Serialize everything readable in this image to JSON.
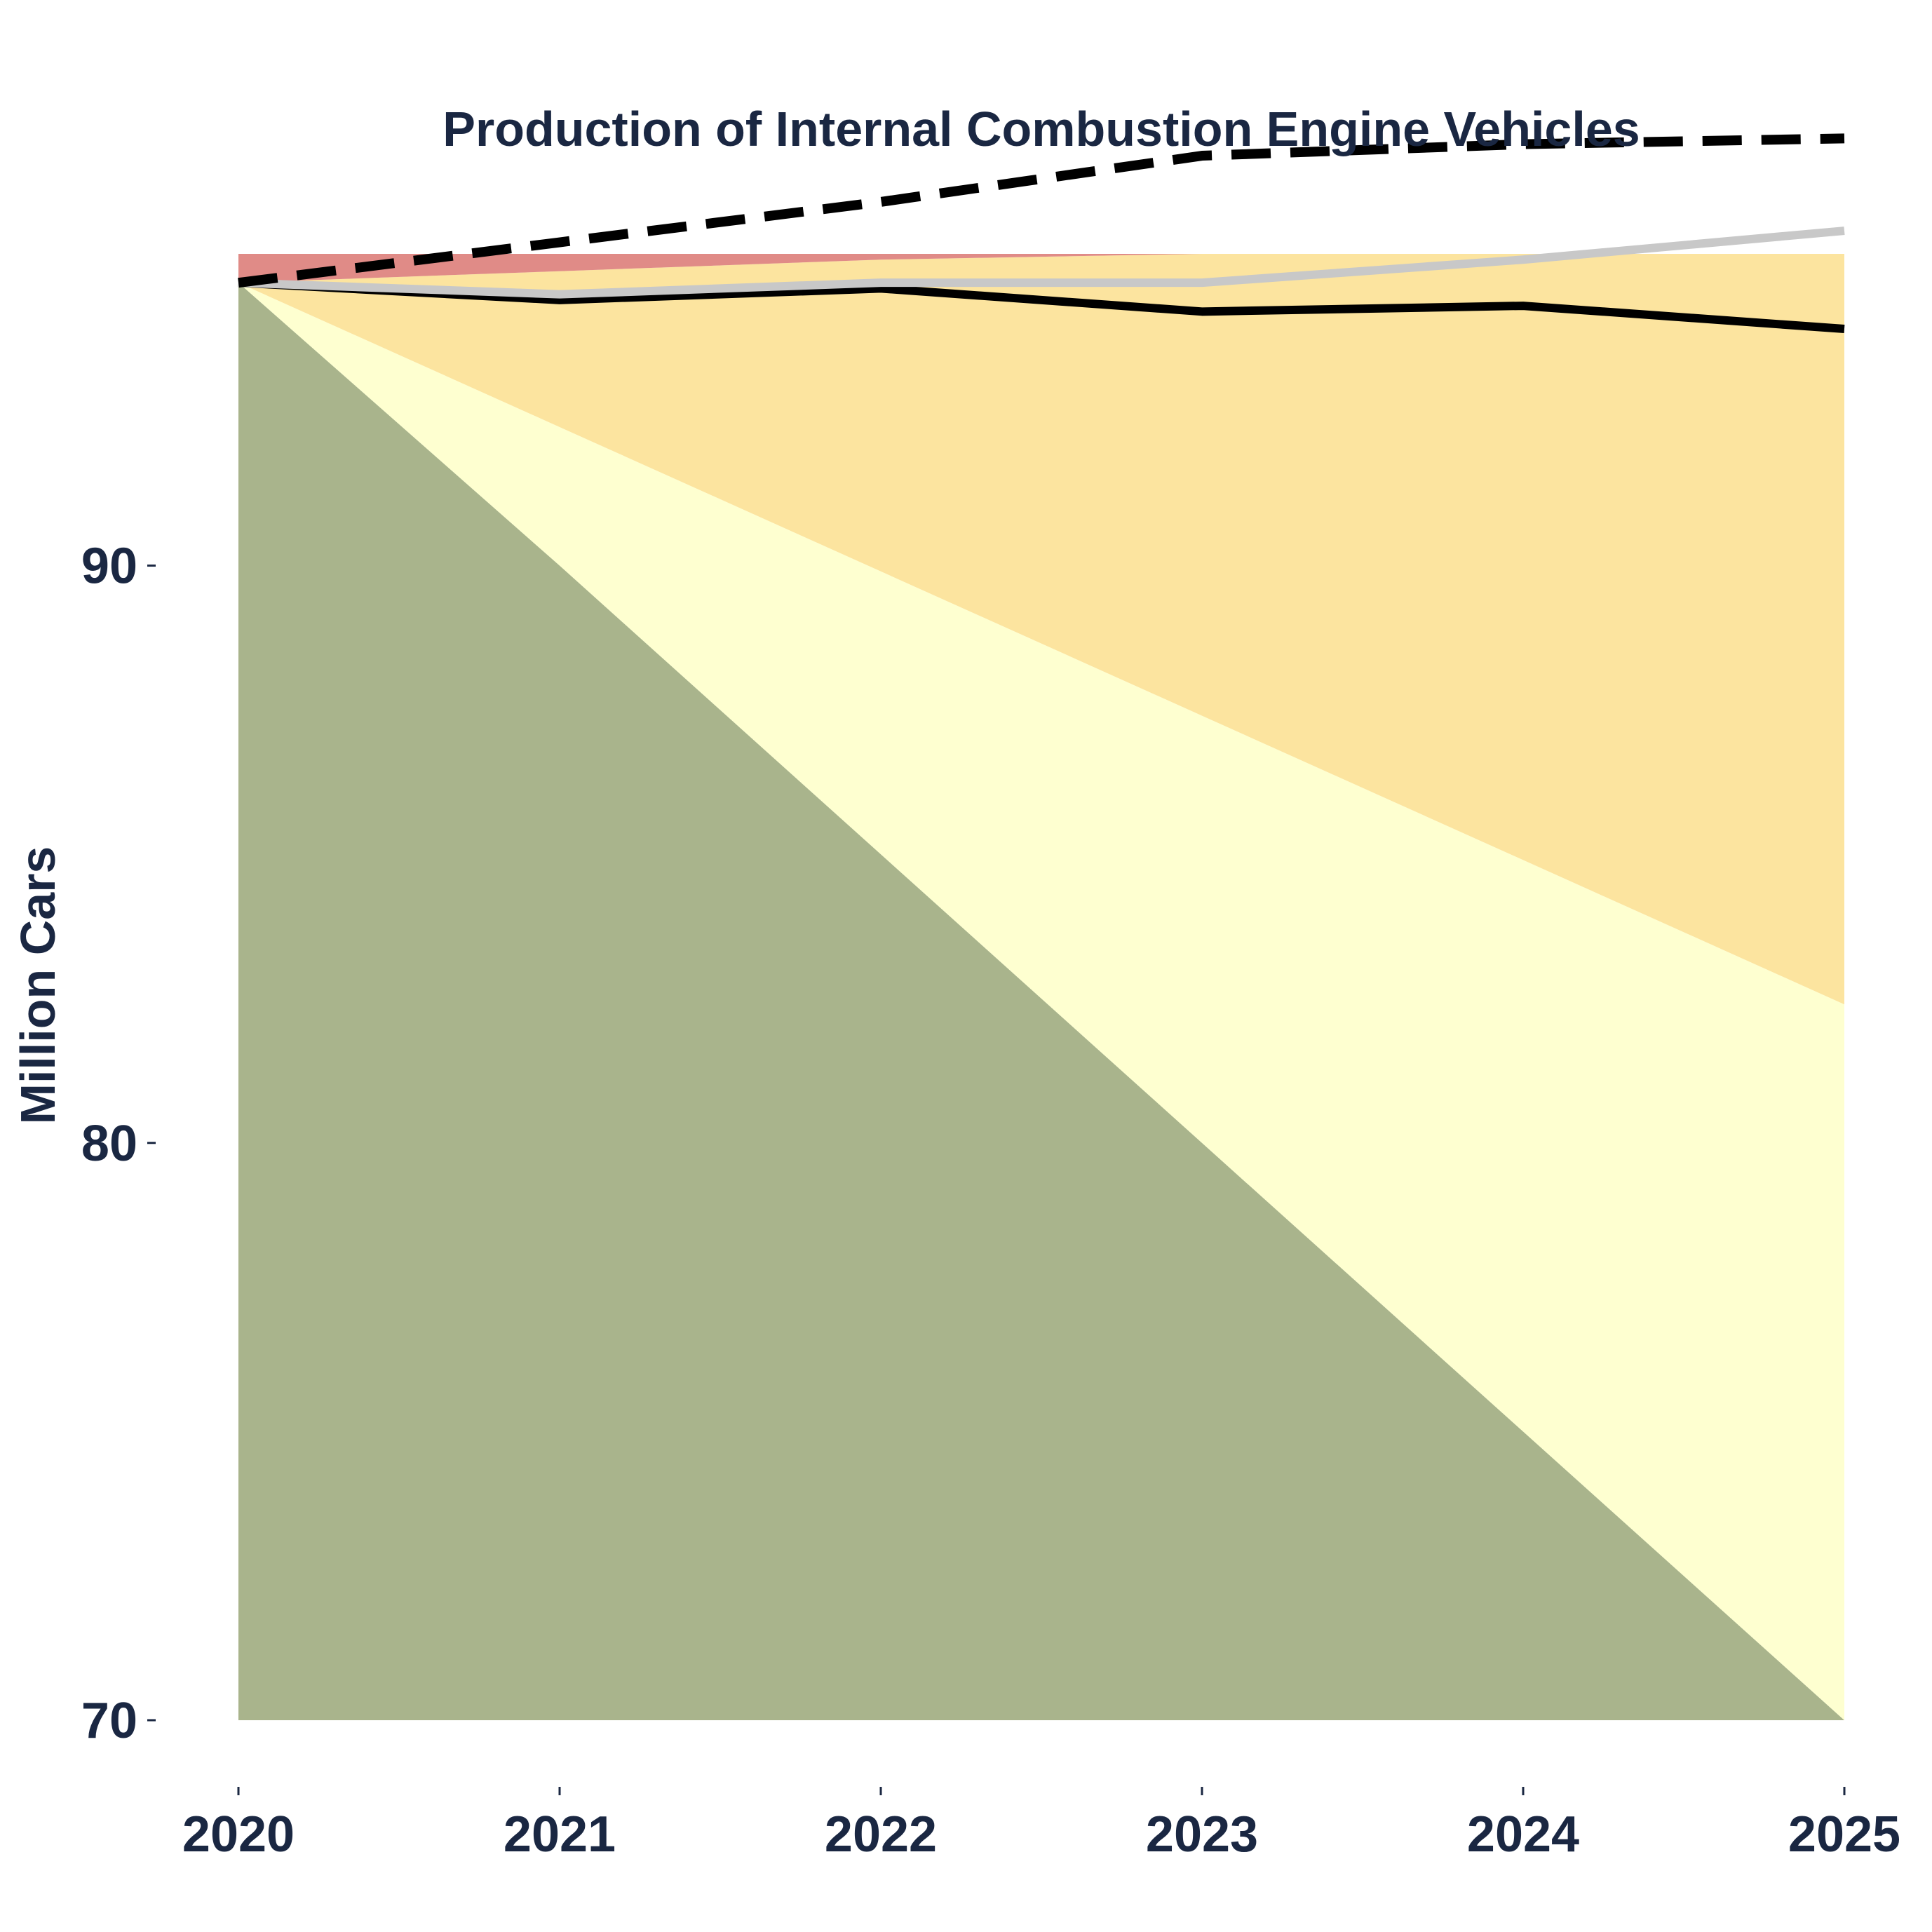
{
  "chart_data": {
    "type": "area",
    "title": "Production of Internal Combustion Engine Vehicles",
    "xlabel": "",
    "ylabel": "Million Cars",
    "x": [
      2020,
      2021,
      2022,
      2023,
      2024,
      2025
    ],
    "xlim": [
      2020,
      2025
    ],
    "ylim": [
      70,
      95.4
    ],
    "yticks": [
      70,
      80,
      90
    ],
    "grid": false,
    "bands": [
      {
        "fill": "#a9b48c",
        "lower": [
          70,
          70,
          70,
          70,
          70,
          70
        ],
        "upper": [
          94.9,
          90.0,
          85.0,
          80.0,
          75.0,
          70.0
        ]
      },
      {
        "fill": "#feffd0",
        "lower": [
          94.9,
          90.0,
          85.0,
          80.0,
          75.0,
          70.0
        ],
        "upper": [
          94.9,
          92.4,
          89.9,
          87.4,
          84.9,
          82.4
        ]
      },
      {
        "fill": "#fce49f",
        "lower": [
          94.9,
          92.4,
          89.9,
          87.4,
          84.9,
          82.4
        ],
        "upper": [
          94.9,
          95.1,
          95.3,
          95.5,
          95.7,
          95.9
        ]
      },
      {
        "fill": "#e08b87",
        "lower": [
          94.9,
          95.1,
          95.3,
          95.5,
          95.7,
          95.9
        ],
        "upper": [
          97.4,
          97.4,
          97.4,
          97.4,
          97.4,
          97.4
        ]
      }
    ],
    "series": [
      {
        "values": [
          94.9,
          94.6,
          94.8,
          94.4,
          94.5,
          94.1
        ],
        "color": "#000000",
        "style": "solid"
      },
      {
        "values": [
          94.9,
          94.7,
          94.9,
          94.9,
          95.3,
          95.8
        ],
        "color": "#c8c8c8",
        "style": "solid"
      },
      {
        "values": [
          94.9,
          95.6,
          96.3,
          97.1,
          97.3,
          97.4
        ],
        "color": "#000000",
        "style": "dashed"
      }
    ]
  }
}
